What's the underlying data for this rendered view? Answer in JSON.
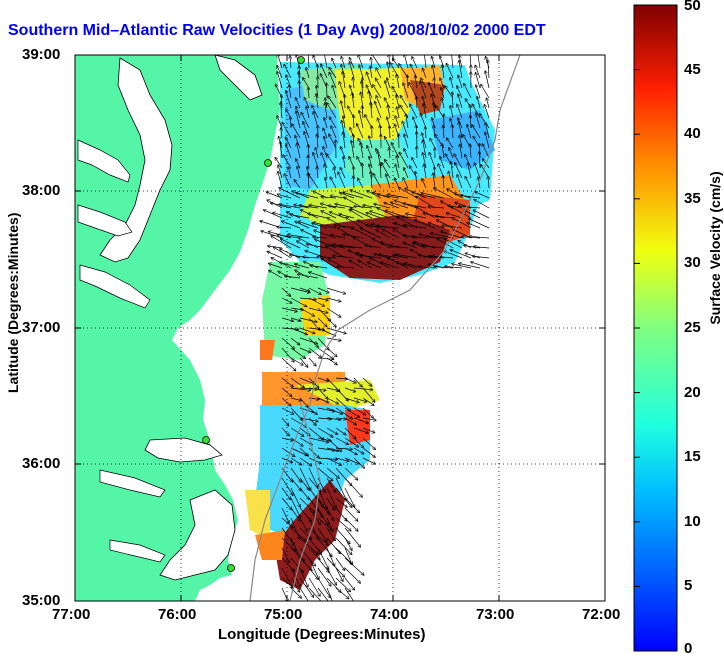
{
  "title": "Southern Mid–Atlantic Raw Velocities (1 Day Avg) 2008/10/02 2000 EDT",
  "xlabel": "Longitude (Degrees:Minutes)",
  "ylabel": "Latitude (Degrees:Minutes)",
  "colorbar": {
    "label": "Surface Velocity (cm/s)",
    "ticks": [
      "0",
      "5",
      "10",
      "15",
      "20",
      "25",
      "30",
      "35",
      "40",
      "45",
      "50"
    ],
    "min": 0,
    "max": 50
  },
  "x_ticks": [
    "77:00",
    "76:00",
    "75:00",
    "74:00",
    "73:00",
    "72:00"
  ],
  "y_ticks": [
    "39:00",
    "38:00",
    "37:00",
    "36:00",
    "35:00"
  ],
  "colors": {
    "land": "#55f5a8",
    "coast": "#000000",
    "title": "#0000ff",
    "grid": "#000000"
  }
}
